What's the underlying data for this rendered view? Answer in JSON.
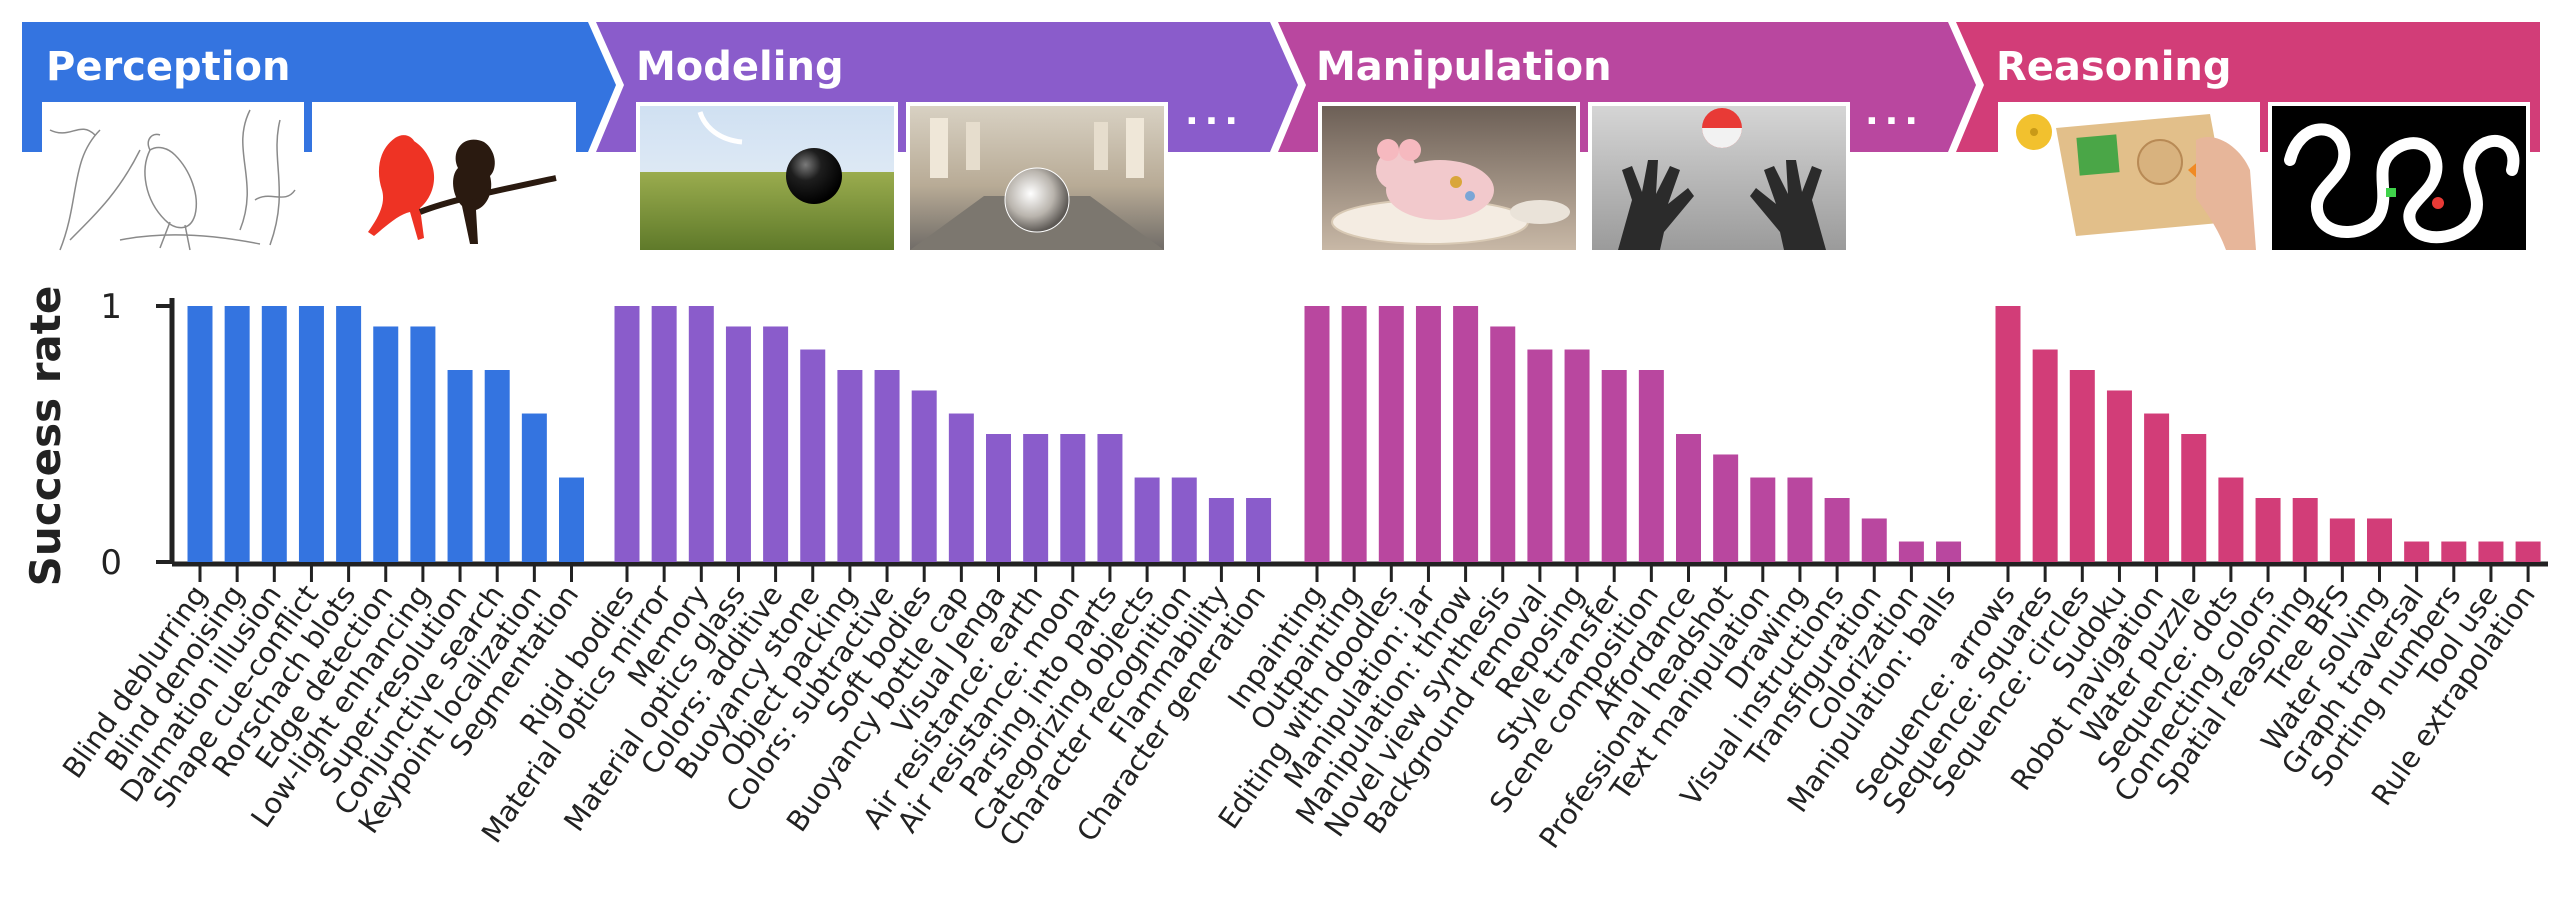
{
  "banner": {
    "sections": [
      {
        "title": "Perception",
        "color": "#3474E0",
        "images": [
          "line-art-parrot",
          "parrot-monkey-segmentation"
        ]
      },
      {
        "title": "Modeling",
        "color": "#8A5CCB",
        "images": [
          "ball-on-grass",
          "glass-sphere-hall"
        ],
        "ellipsis": "..."
      },
      {
        "title": "Manipulation",
        "color": "#B9479F",
        "images": [
          "porcelain-mouse-on-plate",
          "robot-hands-ball"
        ],
        "ellipsis": "..."
      },
      {
        "title": "Reasoning",
        "color": "#D23D78",
        "images": [
          "shape-puzzle-board",
          "maze-path"
        ]
      }
    ]
  },
  "chart_data": {
    "type": "bar",
    "ylabel": "Success rate",
    "xlabel": "",
    "ylim": [
      0,
      1
    ],
    "yticks": [
      "0",
      "1"
    ],
    "groups": [
      {
        "name": "Perception",
        "color": "#3474E0",
        "categories": [
          "Blind deblurring",
          "Blind denoising",
          "Dalmation illusion",
          "Shape cue-conflict",
          "Rorschach blots",
          "Edge detection",
          "Low-light enhancing",
          "Super-resolution",
          "Conjunctive search",
          "Keypoint localization",
          "Segmentation"
        ],
        "values": [
          1,
          1,
          1,
          1,
          1,
          0.92,
          0.92,
          0.75,
          0.75,
          0.58,
          0.33
        ]
      },
      {
        "name": "Modeling",
        "color": "#8A5CCB",
        "categories": [
          "Rigid bodies",
          "Material optics mirror",
          "Memory",
          "Material optics glass",
          "Colors: additive",
          "Buoyancy stone",
          "Object packing",
          "Colors: subtractive",
          "Soft bodies",
          "Buoyancy bottle cap",
          "Visual Jenga",
          "Air resistance: earth",
          "Air resistance: moon",
          "Parsing into parts",
          "Categorizing objects",
          "Character recognition",
          "Flammability",
          "Character generation"
        ],
        "values": [
          1,
          1,
          1,
          0.92,
          0.92,
          0.83,
          0.75,
          0.75,
          0.67,
          0.58,
          0.5,
          0.5,
          0.5,
          0.5,
          0.33,
          0.33,
          0.25,
          0.25
        ]
      },
      {
        "name": "Manipulation",
        "color": "#B9479F",
        "categories": [
          "Inpainting",
          "Outpainting",
          "Editing with doodles",
          "Manipulation: jar",
          "Manipulation: throw",
          "Novel view synthesis",
          "Background removal",
          "Reposing",
          "Style transfer",
          "Scene composition",
          "Affordance",
          "Professional headshot",
          "Text manipulation",
          "Drawing",
          "Visual instructions",
          "Transfiguration",
          "Colorization",
          "Manipulation: balls"
        ],
        "values": [
          1,
          1,
          1,
          1,
          1,
          0.92,
          0.83,
          0.83,
          0.75,
          0.75,
          0.5,
          0.42,
          0.33,
          0.33,
          0.25,
          0.17,
          0.08,
          0.08
        ]
      },
      {
        "name": "Reasoning",
        "color": "#D23D78",
        "categories": [
          "Sequence: arrows",
          "Sequence: squares",
          "Sequence: circles",
          "Sudoku",
          "Robot navigation",
          "Water puzzle",
          "Sequence: dots",
          "Connecting colors",
          "Spatial reasoning",
          "Tree BFS",
          "Water solving",
          "Graph traversal",
          "Sorting numbers",
          "Tool use",
          "Rule extrapolation"
        ],
        "values": [
          1,
          0.83,
          0.75,
          0.67,
          0.58,
          0.5,
          0.33,
          0.25,
          0.25,
          0.17,
          0.17,
          0.08,
          0.08,
          0.08,
          0.08
        ]
      }
    ]
  }
}
